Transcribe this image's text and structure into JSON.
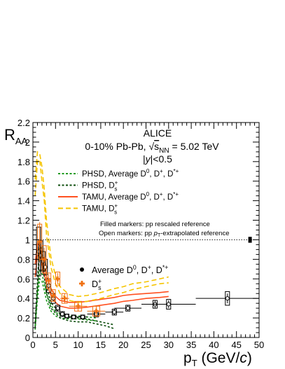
{
  "chart_data": {
    "type": "scatter",
    "xlabel_main": "p",
    "xlabel_sub": "T",
    "xlabel_unit_pre": " (GeV/",
    "xlabel_unit_c": "c",
    "xlabel_unit_post": ")",
    "ylabel_main": "R",
    "ylabel_sub": "AA",
    "xlim": [
      0,
      50
    ],
    "ylim": [
      0,
      2.2
    ],
    "xticks": [
      0,
      5,
      10,
      15,
      20,
      25,
      30,
      35,
      40,
      45,
      50
    ],
    "yticks": [
      0,
      0.2,
      0.4,
      0.6,
      0.8,
      1,
      1.2,
      1.4,
      1.6,
      1.8,
      2,
      2.2
    ],
    "annotations": {
      "experiment": "ALICE",
      "system_pre": "0-10% Pb-Pb, ",
      "system_sqrt": "s",
      "system_sub": "NN",
      "system_post": " = 5.02 TeV",
      "rapidity_pre": "|",
      "rapidity_y": "y",
      "rapidity_post": "|<0.5",
      "note_filled": "Filled markers: pp rescaled reference",
      "note_open_pre": "Open markers: pp ",
      "note_open_p": "p",
      "note_open_sub": "T",
      "note_open_post": "-extrapolated reference"
    },
    "legend_models": [
      {
        "name_pre": "PHSD, Average D",
        "sup1": "0",
        "mid": ", D",
        "sup2": "+",
        "mid2": ", D",
        "sup3": "*+",
        "color": "#1e9a1e",
        "dash": "3,2.5"
      },
      {
        "name_pre": "PHSD, D",
        "sub1": "s",
        "sup1": "+",
        "color": "#0d4d0d",
        "dash": "3,2.5"
      },
      {
        "name_pre": "TAMU, Average D",
        "sup1": "0",
        "mid": ", D",
        "sup2": "+",
        "mid2": ", D",
        "sup3": "*+",
        "color": "#ff5020",
        "dash": ""
      },
      {
        "name_pre": "TAMU, D",
        "sub1": "s",
        "sup1": "+",
        "color": "#f5c400",
        "dash": "7,4"
      }
    ],
    "legend_data": [
      {
        "name_pre": "Average D",
        "sup1": "0",
        "mid": ", D",
        "sup2": "+",
        "mid2": ", D",
        "sup3": "*+",
        "color": "#000000",
        "marker": "circle"
      },
      {
        "name_pre": "D",
        "sub1": "s",
        "sup1": "+",
        "color": "#f07010",
        "marker": "cross"
      }
    ],
    "series": [
      {
        "name": "Average D0, D+, D*+",
        "color": "#000000",
        "points": [
          {
            "x": 1.25,
            "xerr": 0.25,
            "y": 0.88,
            "yerr": 0.05,
            "sys": 0.25
          },
          {
            "x": 1.75,
            "xerr": 0.25,
            "y": 0.84,
            "yerr": 0.05,
            "sys": 0.15
          },
          {
            "x": 2.25,
            "xerr": 0.25,
            "y": 0.78,
            "yerr": 0.04,
            "sys": 0.1
          },
          {
            "x": 2.75,
            "xerr": 0.25,
            "y": 0.72,
            "yerr": 0.04,
            "sys": 0.08
          },
          {
            "x": 3.5,
            "xerr": 0.5,
            "y": 0.53,
            "yerr": 0.03,
            "sys": 0.07
          },
          {
            "x": 4.5,
            "xerr": 0.5,
            "y": 0.4,
            "yerr": 0.03,
            "sys": 0.05
          },
          {
            "x": 5.5,
            "xerr": 0.5,
            "y": 0.3,
            "yerr": 0.02,
            "sys": 0.03
          },
          {
            "x": 6.5,
            "xerr": 0.5,
            "y": 0.24,
            "yerr": 0.02,
            "sys": 0.025
          },
          {
            "x": 7.5,
            "xerr": 0.5,
            "y": 0.22,
            "yerr": 0.02,
            "sys": 0.02
          },
          {
            "x": 9,
            "xerr": 1,
            "y": 0.21,
            "yerr": 0.02,
            "sys": 0.02
          },
          {
            "x": 11,
            "xerr": 1,
            "y": 0.21,
            "yerr": 0.02,
            "sys": 0.02
          },
          {
            "x": 14,
            "xerr": 2,
            "y": 0.24,
            "yerr": 0.03,
            "sys": 0.03
          },
          {
            "x": 18,
            "xerr": 2,
            "y": 0.26,
            "yerr": 0.03,
            "sys": 0.03
          },
          {
            "x": 21,
            "xerr": 3,
            "y": 0.3,
            "yerr": 0.03,
            "sys": 0.03
          },
          {
            "x": 27,
            "xerr": 3,
            "y": 0.34,
            "yerr": 0.04,
            "sys": 0.04
          },
          {
            "x": 30,
            "xerr": 6,
            "y": 0.34,
            "yerr": 0.04,
            "sys": 0.05
          },
          {
            "x": 43,
            "xerr": 7,
            "y": 0.4,
            "yerr": 0.05,
            "sys": 0.07
          }
        ]
      },
      {
        "name": "Ds+",
        "color": "#f07010",
        "points": [
          {
            "x": 1.5,
            "xerr": 0.5,
            "y": 0.98,
            "yerr": 0.2,
            "sys": 0.18
          },
          {
            "x": 2.5,
            "xerr": 0.5,
            "y": 0.8,
            "yerr": 0.12,
            "sys": 0.14
          },
          {
            "x": 3.5,
            "xerr": 0.5,
            "y": 0.58,
            "yerr": 0.07,
            "sys": 0.08
          },
          {
            "x": 4.5,
            "xerr": 0.5,
            "y": 0.43,
            "yerr": 0.05,
            "sys": 0.06
          },
          {
            "x": 5.5,
            "xerr": 0.5,
            "y": 0.6,
            "yerr": 0.06,
            "sys": 0.07
          },
          {
            "x": 7,
            "xerr": 1,
            "y": 0.4,
            "yerr": 0.05,
            "sys": 0.05
          },
          {
            "x": 10,
            "xerr": 2,
            "y": 0.32,
            "yerr": 0.05,
            "sys": 0.05
          },
          {
            "x": 14,
            "xerr": 2,
            "y": 0.27,
            "yerr": 0.06,
            "sys": 0.05
          }
        ]
      },
      {
        "name": "PHSD, Average D0, D+, D*+",
        "color": "#1e9a1e",
        "curve": true,
        "band": [
          {
            "x": 0.5,
            "lo": 0.08,
            "hi": 0.12
          },
          {
            "x": 1,
            "lo": 0.4,
            "hi": 0.48
          },
          {
            "x": 1.5,
            "lo": 0.6,
            "hi": 0.68
          },
          {
            "x": 2,
            "lo": 0.58,
            "hi": 0.65
          },
          {
            "x": 2.5,
            "lo": 0.48,
            "hi": 0.55
          },
          {
            "x": 3,
            "lo": 0.38,
            "hi": 0.45
          },
          {
            "x": 4,
            "lo": 0.27,
            "hi": 0.33
          },
          {
            "x": 5,
            "lo": 0.22,
            "hi": 0.26
          },
          {
            "x": 6,
            "lo": 0.2,
            "hi": 0.23
          },
          {
            "x": 8,
            "lo": 0.19,
            "hi": 0.22
          },
          {
            "x": 10,
            "lo": 0.19,
            "hi": 0.22
          },
          {
            "x": 12,
            "lo": 0.18,
            "hi": 0.21
          },
          {
            "x": 14,
            "lo": 0.17,
            "hi": 0.2
          }
        ]
      },
      {
        "name": "PHSD, Ds+",
        "color": "#0d4d0d",
        "curve": true,
        "band": [
          {
            "x": 0.5,
            "lo": 0.1,
            "hi": 0.15
          },
          {
            "x": 1,
            "lo": 0.5,
            "hi": 0.58
          },
          {
            "x": 1.5,
            "lo": 0.88,
            "hi": 0.95
          },
          {
            "x": 2,
            "lo": 0.82,
            "hi": 0.9
          },
          {
            "x": 2.5,
            "lo": 0.62,
            "hi": 0.7
          },
          {
            "x": 3,
            "lo": 0.45,
            "hi": 0.52
          },
          {
            "x": 4,
            "lo": 0.3,
            "hi": 0.36
          },
          {
            "x": 6,
            "lo": 0.2,
            "hi": 0.24
          },
          {
            "x": 8,
            "lo": 0.17,
            "hi": 0.21
          },
          {
            "x": 10,
            "lo": 0.16,
            "hi": 0.2
          },
          {
            "x": 12,
            "lo": 0.16,
            "hi": 0.19
          },
          {
            "x": 14,
            "lo": 0.14,
            "hi": 0.17
          },
          {
            "x": 16,
            "lo": 0.12,
            "hi": 0.15
          },
          {
            "x": 18,
            "lo": 0.09,
            "hi": 0.13
          }
        ]
      },
      {
        "name": "TAMU, Average D0, D+, D*+",
        "color": "#ff5020",
        "curve": true,
        "band": [
          {
            "x": 0.5,
            "lo": 0.62,
            "hi": 0.75
          },
          {
            "x": 1,
            "lo": 0.84,
            "hi": 0.96
          },
          {
            "x": 1.5,
            "lo": 0.84,
            "hi": 0.94
          },
          {
            "x": 2,
            "lo": 0.74,
            "hi": 0.84
          },
          {
            "x": 3,
            "lo": 0.56,
            "hi": 0.64
          },
          {
            "x": 4,
            "lo": 0.43,
            "hi": 0.5
          },
          {
            "x": 5,
            "lo": 0.36,
            "hi": 0.42
          },
          {
            "x": 6,
            "lo": 0.32,
            "hi": 0.38
          },
          {
            "x": 8,
            "lo": 0.3,
            "hi": 0.36
          },
          {
            "x": 10,
            "lo": 0.3,
            "hi": 0.36
          },
          {
            "x": 12,
            "lo": 0.31,
            "hi": 0.37
          },
          {
            "x": 15,
            "lo": 0.33,
            "hi": 0.39
          },
          {
            "x": 18,
            "lo": 0.35,
            "hi": 0.41
          },
          {
            "x": 20,
            "lo": 0.37,
            "hi": 0.43
          },
          {
            "x": 22,
            "lo": 0.38,
            "hi": 0.44
          },
          {
            "x": 25,
            "lo": 0.4,
            "hi": 0.45
          },
          {
            "x": 28,
            "lo": 0.41,
            "hi": 0.46
          },
          {
            "x": 30,
            "lo": 0.42,
            "hi": 0.47
          }
        ]
      },
      {
        "name": "TAMU, Ds+",
        "color": "#f5c400",
        "curve": true,
        "band": [
          {
            "x": 0.5,
            "lo": 1.45,
            "hi": 1.62
          },
          {
            "x": 1,
            "lo": 1.8,
            "hi": 1.9
          },
          {
            "x": 1.5,
            "lo": 1.82,
            "hi": 1.88
          },
          {
            "x": 2,
            "lo": 1.6,
            "hi": 1.75
          },
          {
            "x": 2.5,
            "lo": 1.4,
            "hi": 1.52
          },
          {
            "x": 3,
            "lo": 1.05,
            "hi": 1.2
          },
          {
            "x": 4,
            "lo": 0.72,
            "hi": 0.82
          },
          {
            "x": 5,
            "lo": 0.55,
            "hi": 0.63
          },
          {
            "x": 6,
            "lo": 0.45,
            "hi": 0.52
          },
          {
            "x": 8,
            "lo": 0.38,
            "hi": 0.44
          },
          {
            "x": 10,
            "lo": 0.36,
            "hi": 0.42
          },
          {
            "x": 12,
            "lo": 0.37,
            "hi": 0.43
          },
          {
            "x": 15,
            "lo": 0.4,
            "hi": 0.46
          },
          {
            "x": 18,
            "lo": 0.44,
            "hi": 0.5
          },
          {
            "x": 20,
            "lo": 0.46,
            "hi": 0.52
          },
          {
            "x": 22,
            "lo": 0.49,
            "hi": 0.55
          },
          {
            "x": 25,
            "lo": 0.52,
            "hi": 0.57
          },
          {
            "x": 28,
            "lo": 0.55,
            "hi": 0.6
          },
          {
            "x": 30,
            "lo": 0.56,
            "hi": 0.62
          }
        ]
      }
    ],
    "normalization_box": {
      "x": 48,
      "y": 1,
      "err": 0.03,
      "color": "#000000"
    },
    "reference_line": {
      "y": 1,
      "style": "dotted"
    }
  }
}
